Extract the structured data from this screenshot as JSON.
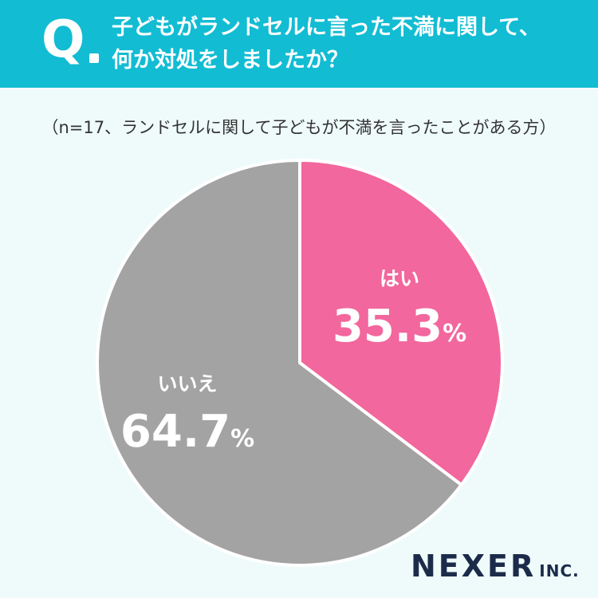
{
  "header": {
    "q_mark": "Q",
    "question_lines": [
      "子どもがランドセルに言った不満に関して、",
      "何か対処をしましたか？"
    ]
  },
  "sample_note": "（n=17、ランドセルに関して子どもが不満を言ったことがある方）",
  "chart_data": {
    "type": "pie",
    "title": "子どもがランドセルに言った不満に関して、何か対処をしましたか？",
    "start_angle_deg": 0,
    "direction": "clockwise",
    "unit": "%",
    "slices": [
      {
        "label": "はい",
        "value": 35.3,
        "color": "#f2679d"
      },
      {
        "label": "いいえ",
        "value": 64.7,
        "color": "#a3a3a3"
      }
    ],
    "separator_color": "#ffffff"
  },
  "brand": {
    "main": "NEXER",
    "sub": "INC.",
    "color": "#1c2b4a"
  },
  "colors": {
    "header_bg": "#12bcd3",
    "page_bg": "#effbfb"
  }
}
